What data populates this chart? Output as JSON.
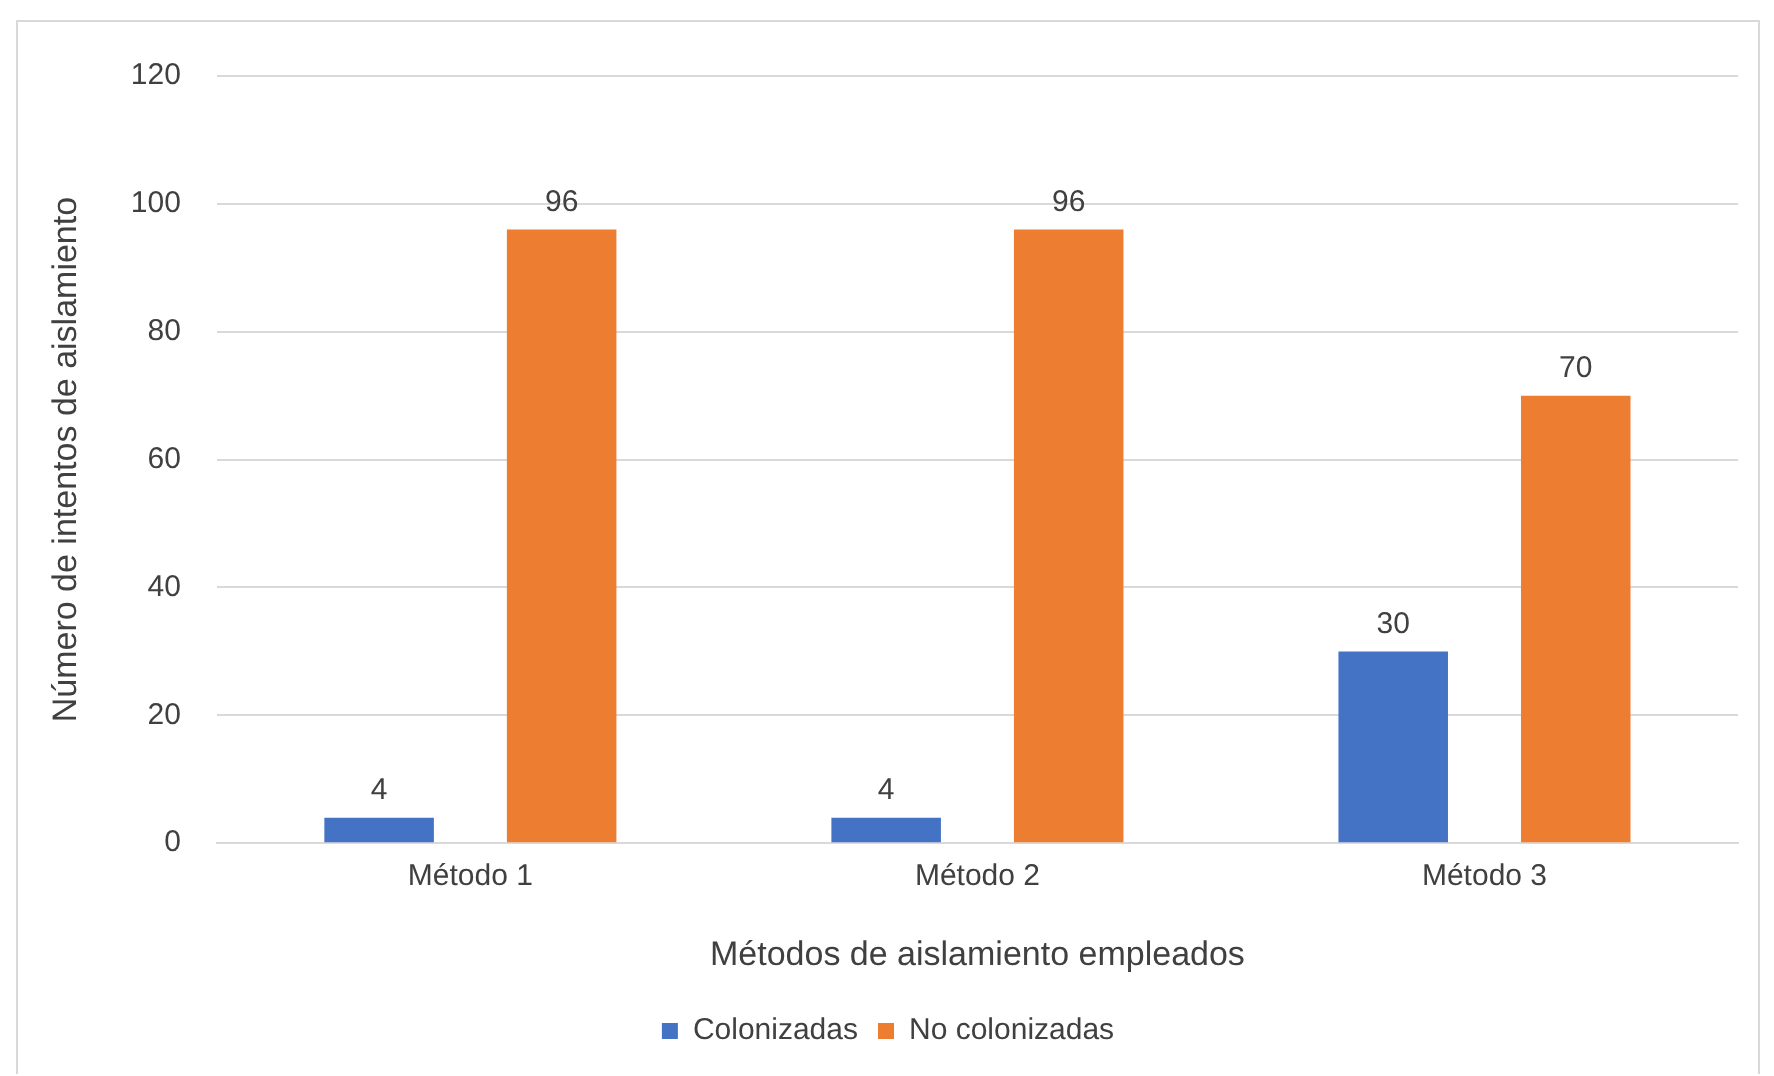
{
  "chart_data": {
    "type": "bar",
    "xlabel": "Métodos de aislamiento empleados",
    "ylabel": "Número de intentos de aislamiento",
    "categories": [
      "Método 1",
      "Método 2",
      "Método 3"
    ],
    "series": [
      {
        "name": "Colonizadas",
        "color": "#4472c4",
        "values": [
          4,
          4,
          30
        ]
      },
      {
        "name": "No colonizadas",
        "color": "#ed7d31",
        "values": [
          96,
          96,
          70
        ]
      }
    ],
    "ylim": [
      0,
      120
    ],
    "yticks": [
      0,
      20,
      40,
      60,
      80,
      100,
      120
    ],
    "grid": "y",
    "legend": "bottom",
    "data_labels": true
  }
}
